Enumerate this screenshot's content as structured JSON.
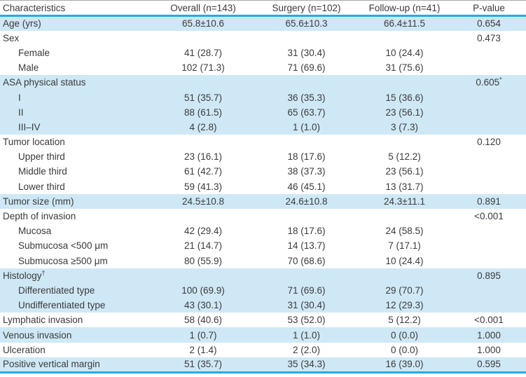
{
  "table": {
    "columns": [
      "Characteristics",
      "Overall (n=143)",
      "Surgery (n=102)",
      "Follow-up (n=41)",
      "P-value"
    ],
    "colors": {
      "shaded_row": "#cfe8f6",
      "rule_blue": "#2aa9e0",
      "top_rule": "#a8a8a8",
      "text": "#3a3a3a"
    },
    "rows": [
      {
        "label": "Age (yrs)",
        "indent": false,
        "overall": "65.8±10.6",
        "surgery": "65.6±10.3",
        "followup": "66.4±11.5",
        "pvalue": "0.654",
        "shaded": true
      },
      {
        "label": "Sex",
        "indent": false,
        "overall": "",
        "surgery": "",
        "followup": "",
        "pvalue": "0.473",
        "shaded": false
      },
      {
        "label": "Female",
        "indent": true,
        "overall": "41 (28.7)",
        "surgery": "31 (30.4)",
        "followup": "10 (24.4)",
        "pvalue": "",
        "shaded": false
      },
      {
        "label": "Male",
        "indent": true,
        "overall": "102 (71.3)",
        "surgery": "71 (69.6)",
        "followup": "31 (75.6)",
        "pvalue": "",
        "shaded": false
      },
      {
        "label": "ASA physical status",
        "indent": false,
        "overall": "",
        "surgery": "",
        "followup": "",
        "pvalue": "0.605",
        "pvalue_sup": "*",
        "shaded": true
      },
      {
        "label": "I",
        "indent": true,
        "overall": "51 (35.7)",
        "surgery": "36 (35.3)",
        "followup": "15 (36.6)",
        "pvalue": "",
        "shaded": true
      },
      {
        "label": "II",
        "indent": true,
        "overall": "88 (61.5)",
        "surgery": "65 (63.7)",
        "followup": "23 (56.1)",
        "pvalue": "",
        "shaded": true
      },
      {
        "label": "III–IV",
        "indent": true,
        "overall": "4 (2.8)",
        "surgery": "1 (1.0)",
        "followup": "3 (7.3)",
        "pvalue": "",
        "shaded": true
      },
      {
        "label": "Tumor location",
        "indent": false,
        "overall": "",
        "surgery": "",
        "followup": "",
        "pvalue": "0.120",
        "shaded": false
      },
      {
        "label": "Upper third",
        "indent": true,
        "overall": "23 (16.1)",
        "surgery": "18 (17.6)",
        "followup": "5 (12.2)",
        "pvalue": "",
        "shaded": false
      },
      {
        "label": "Middle third",
        "indent": true,
        "overall": "61 (42.7)",
        "surgery": "38 (37.3)",
        "followup": "23 (56.1)",
        "pvalue": "",
        "shaded": false
      },
      {
        "label": "Lower third",
        "indent": true,
        "overall": "59 (41.3)",
        "surgery": "46 (45.1)",
        "followup": "13 (31.7)",
        "pvalue": "",
        "shaded": false
      },
      {
        "label": "Tumor size (mm)",
        "indent": false,
        "overall": "24.5±10.8",
        "surgery": "24.6±10.8",
        "followup": "24.3±11.1",
        "pvalue": "0.891",
        "shaded": true
      },
      {
        "label": "Depth of invasion",
        "indent": false,
        "overall": "",
        "surgery": "",
        "followup": "",
        "pvalue": "<0.001",
        "shaded": false
      },
      {
        "label": "Mucosa",
        "indent": true,
        "overall": "42 (29.4)",
        "surgery": "18 (17.6)",
        "followup": "24 (58.5)",
        "pvalue": "",
        "shaded": false
      },
      {
        "label": "Submucosa <500 μm",
        "indent": true,
        "overall": "21 (14.7)",
        "surgery": "14 (13.7)",
        "followup": "7 (17.1)",
        "pvalue": "",
        "shaded": false
      },
      {
        "label": "Submucosa ≥500 μm",
        "indent": true,
        "overall": "80 (55.9)",
        "surgery": "70 (68.6)",
        "followup": "10 (24.4)",
        "pvalue": "",
        "shaded": false
      },
      {
        "label": "Histology",
        "label_sup": "†",
        "indent": false,
        "overall": "",
        "surgery": "",
        "followup": "",
        "pvalue": "0.895",
        "shaded": true
      },
      {
        "label": "Differentiated type",
        "indent": true,
        "overall": "100 (69.9)",
        "surgery": "71 (69.6)",
        "followup": "29 (70.7)",
        "pvalue": "",
        "shaded": true
      },
      {
        "label": "Undifferentiated type",
        "indent": true,
        "overall": "43 (30.1)",
        "surgery": "31 (30.4)",
        "followup": "12 (29.3)",
        "pvalue": "",
        "shaded": true
      },
      {
        "label": "Lymphatic invasion",
        "indent": false,
        "overall": "58 (40.6)",
        "surgery": "53 (52.0)",
        "followup": "5 (12.2)",
        "pvalue": "<0.001",
        "shaded": false
      },
      {
        "label": "Venous invasion",
        "indent": false,
        "overall": "1 (0.7)",
        "surgery": "1 (1.0)",
        "followup": "0 (0.0)",
        "pvalue": "1.000",
        "shaded": true
      },
      {
        "label": "Ulceration",
        "indent": false,
        "overall": "2 (1.4)",
        "surgery": "2 (2.0)",
        "followup": "0 (0.0)",
        "pvalue": "1.000",
        "shaded": false
      },
      {
        "label": "Positive vertical margin",
        "indent": false,
        "overall": "51 (35.7)",
        "surgery": "35 (34.3)",
        "followup": "16 (39.0)",
        "pvalue": "0.595",
        "shaded": true
      }
    ]
  }
}
